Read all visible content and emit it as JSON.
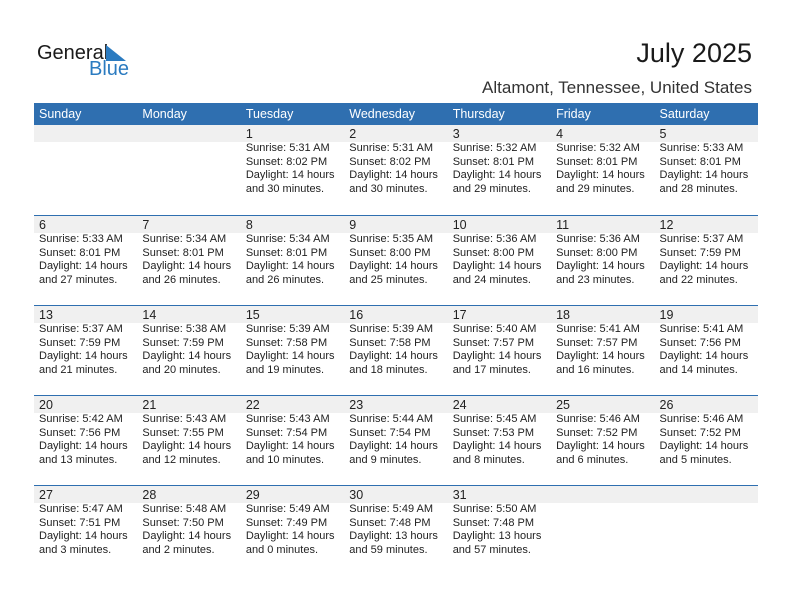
{
  "logo": {
    "general": "General",
    "blue": "Blue"
  },
  "title": "July 2025",
  "location": "Altamont, Tennessee, United States",
  "colors": {
    "header": "#2f6fb0",
    "band": "#f0f0f0",
    "logo_blue": "#2b7bc0"
  },
  "weekdays": [
    "Sunday",
    "Monday",
    "Tuesday",
    "Wednesday",
    "Thursday",
    "Friday",
    "Saturday"
  ],
  "weeks": [
    [
      null,
      null,
      {
        "day": "1",
        "sunrise": "Sunrise: 5:31 AM",
        "sunset": "Sunset: 8:02 PM",
        "daylight": "Daylight: 14 hours",
        "minutes": "and 30 minutes."
      },
      {
        "day": "2",
        "sunrise": "Sunrise: 5:31 AM",
        "sunset": "Sunset: 8:02 PM",
        "daylight": "Daylight: 14 hours",
        "minutes": "and 30 minutes."
      },
      {
        "day": "3",
        "sunrise": "Sunrise: 5:32 AM",
        "sunset": "Sunset: 8:01 PM",
        "daylight": "Daylight: 14 hours",
        "minutes": "and 29 minutes."
      },
      {
        "day": "4",
        "sunrise": "Sunrise: 5:32 AM",
        "sunset": "Sunset: 8:01 PM",
        "daylight": "Daylight: 14 hours",
        "minutes": "and 29 minutes."
      },
      {
        "day": "5",
        "sunrise": "Sunrise: 5:33 AM",
        "sunset": "Sunset: 8:01 PM",
        "daylight": "Daylight: 14 hours",
        "minutes": "and 28 minutes."
      }
    ],
    [
      {
        "day": "6",
        "sunrise": "Sunrise: 5:33 AM",
        "sunset": "Sunset: 8:01 PM",
        "daylight": "Daylight: 14 hours",
        "minutes": "and 27 minutes."
      },
      {
        "day": "7",
        "sunrise": "Sunrise: 5:34 AM",
        "sunset": "Sunset: 8:01 PM",
        "daylight": "Daylight: 14 hours",
        "minutes": "and 26 minutes."
      },
      {
        "day": "8",
        "sunrise": "Sunrise: 5:34 AM",
        "sunset": "Sunset: 8:01 PM",
        "daylight": "Daylight: 14 hours",
        "minutes": "and 26 minutes."
      },
      {
        "day": "9",
        "sunrise": "Sunrise: 5:35 AM",
        "sunset": "Sunset: 8:00 PM",
        "daylight": "Daylight: 14 hours",
        "minutes": "and 25 minutes."
      },
      {
        "day": "10",
        "sunrise": "Sunrise: 5:36 AM",
        "sunset": "Sunset: 8:00 PM",
        "daylight": "Daylight: 14 hours",
        "minutes": "and 24 minutes."
      },
      {
        "day": "11",
        "sunrise": "Sunrise: 5:36 AM",
        "sunset": "Sunset: 8:00 PM",
        "daylight": "Daylight: 14 hours",
        "minutes": "and 23 minutes."
      },
      {
        "day": "12",
        "sunrise": "Sunrise: 5:37 AM",
        "sunset": "Sunset: 7:59 PM",
        "daylight": "Daylight: 14 hours",
        "minutes": "and 22 minutes."
      }
    ],
    [
      {
        "day": "13",
        "sunrise": "Sunrise: 5:37 AM",
        "sunset": "Sunset: 7:59 PM",
        "daylight": "Daylight: 14 hours",
        "minutes": "and 21 minutes."
      },
      {
        "day": "14",
        "sunrise": "Sunrise: 5:38 AM",
        "sunset": "Sunset: 7:59 PM",
        "daylight": "Daylight: 14 hours",
        "minutes": "and 20 minutes."
      },
      {
        "day": "15",
        "sunrise": "Sunrise: 5:39 AM",
        "sunset": "Sunset: 7:58 PM",
        "daylight": "Daylight: 14 hours",
        "minutes": "and 19 minutes."
      },
      {
        "day": "16",
        "sunrise": "Sunrise: 5:39 AM",
        "sunset": "Sunset: 7:58 PM",
        "daylight": "Daylight: 14 hours",
        "minutes": "and 18 minutes."
      },
      {
        "day": "17",
        "sunrise": "Sunrise: 5:40 AM",
        "sunset": "Sunset: 7:57 PM",
        "daylight": "Daylight: 14 hours",
        "minutes": "and 17 minutes."
      },
      {
        "day": "18",
        "sunrise": "Sunrise: 5:41 AM",
        "sunset": "Sunset: 7:57 PM",
        "daylight": "Daylight: 14 hours",
        "minutes": "and 16 minutes."
      },
      {
        "day": "19",
        "sunrise": "Sunrise: 5:41 AM",
        "sunset": "Sunset: 7:56 PM",
        "daylight": "Daylight: 14 hours",
        "minutes": "and 14 minutes."
      }
    ],
    [
      {
        "day": "20",
        "sunrise": "Sunrise: 5:42 AM",
        "sunset": "Sunset: 7:56 PM",
        "daylight": "Daylight: 14 hours",
        "minutes": "and 13 minutes."
      },
      {
        "day": "21",
        "sunrise": "Sunrise: 5:43 AM",
        "sunset": "Sunset: 7:55 PM",
        "daylight": "Daylight: 14 hours",
        "minutes": "and 12 minutes."
      },
      {
        "day": "22",
        "sunrise": "Sunrise: 5:43 AM",
        "sunset": "Sunset: 7:54 PM",
        "daylight": "Daylight: 14 hours",
        "minutes": "and 10 minutes."
      },
      {
        "day": "23",
        "sunrise": "Sunrise: 5:44 AM",
        "sunset": "Sunset: 7:54 PM",
        "daylight": "Daylight: 14 hours",
        "minutes": "and 9 minutes."
      },
      {
        "day": "24",
        "sunrise": "Sunrise: 5:45 AM",
        "sunset": "Sunset: 7:53 PM",
        "daylight": "Daylight: 14 hours",
        "minutes": "and 8 minutes."
      },
      {
        "day": "25",
        "sunrise": "Sunrise: 5:46 AM",
        "sunset": "Sunset: 7:52 PM",
        "daylight": "Daylight: 14 hours",
        "minutes": "and 6 minutes."
      },
      {
        "day": "26",
        "sunrise": "Sunrise: 5:46 AM",
        "sunset": "Sunset: 7:52 PM",
        "daylight": "Daylight: 14 hours",
        "minutes": "and 5 minutes."
      }
    ],
    [
      {
        "day": "27",
        "sunrise": "Sunrise: 5:47 AM",
        "sunset": "Sunset: 7:51 PM",
        "daylight": "Daylight: 14 hours",
        "minutes": "and 3 minutes."
      },
      {
        "day": "28",
        "sunrise": "Sunrise: 5:48 AM",
        "sunset": "Sunset: 7:50 PM",
        "daylight": "Daylight: 14 hours",
        "minutes": "and 2 minutes."
      },
      {
        "day": "29",
        "sunrise": "Sunrise: 5:49 AM",
        "sunset": "Sunset: 7:49 PM",
        "daylight": "Daylight: 14 hours",
        "minutes": "and 0 minutes."
      },
      {
        "day": "30",
        "sunrise": "Sunrise: 5:49 AM",
        "sunset": "Sunset: 7:48 PM",
        "daylight": "Daylight: 13 hours",
        "minutes": "and 59 minutes."
      },
      {
        "day": "31",
        "sunrise": "Sunrise: 5:50 AM",
        "sunset": "Sunset: 7:48 PM",
        "daylight": "Daylight: 13 hours",
        "minutes": "and 57 minutes."
      },
      null,
      null
    ]
  ]
}
